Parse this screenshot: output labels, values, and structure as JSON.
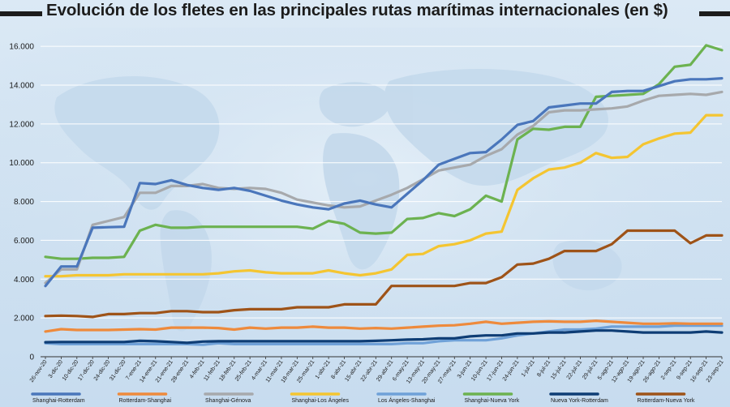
{
  "title": "Evolución de los fletes en las principales rutas marítimas internacionales (en $)",
  "chart_data": {
    "type": "line",
    "title": "Evolución de los fletes en las principales rutas marítimas internacionales (en $)",
    "xlabel": "",
    "ylabel": "",
    "ylim": [
      0,
      16800
    ],
    "y_ticks": [
      "0",
      "2.000",
      "4.000",
      "6.000",
      "8.000",
      "10.000",
      "12.000",
      "14.000",
      "16.000"
    ],
    "y_tick_values": [
      0,
      2000,
      4000,
      6000,
      8000,
      10000,
      12000,
      14000,
      16000
    ],
    "grid": true,
    "legend_position": "bottom",
    "x": [
      "26-nov-20",
      "3-dic-20",
      "10-dic-20",
      "17-dic-20",
      "24-dic-20",
      "31-dic-20",
      "7-ene-21",
      "14-ene-21",
      "21-ene-21",
      "28-ene-21",
      "4-feb-21",
      "11-feb-21",
      "18-feb-21",
      "25-feb-21",
      "4-mar-21",
      "11-mar-21",
      "18-mar-21",
      "25-mar-21",
      "1-abr-21",
      "8-abr-21",
      "15-abr-21",
      "22-abr-21",
      "29-abr-21",
      "6-may-21",
      "13-may-21",
      "20-may-21",
      "27-may-21",
      "3-jun-21",
      "10-jun-21",
      "17-jun-21",
      "24-jun-21",
      "1-jul-21",
      "8-jul-21",
      "15-jul-21",
      "22-jul-21",
      "29-jul-21",
      "5-ago-21",
      "12-ago-21",
      "19-ago-21",
      "26-ago-21",
      "2-sep-21",
      "9-sep-21",
      "16-sep-21",
      "23-sep-21"
    ],
    "series": [
      {
        "name": "Shanghai-Rotterdam",
        "color": "#4a76bb",
        "values": [
          3650,
          4650,
          4650,
          6650,
          6680,
          6700,
          8950,
          8900,
          9100,
          8850,
          8700,
          8600,
          8700,
          8550,
          8300,
          8050,
          7850,
          7700,
          7600,
          7900,
          8050,
          7850,
          7700,
          8400,
          9100,
          9900,
          10200,
          10500,
          10550,
          11200,
          11950,
          12150,
          12850,
          12950,
          13050,
          13050,
          13650,
          13700,
          13700,
          13950,
          14200,
          14300,
          14300,
          14350
        ]
      },
      {
        "name": "Rotterdam-Shanghai",
        "color": "#ee8a3c",
        "values": [
          1300,
          1420,
          1380,
          1380,
          1380,
          1400,
          1420,
          1400,
          1500,
          1500,
          1500,
          1480,
          1400,
          1500,
          1450,
          1500,
          1500,
          1550,
          1500,
          1500,
          1450,
          1480,
          1450,
          1500,
          1550,
          1600,
          1620,
          1700,
          1800,
          1700,
          1750,
          1800,
          1820,
          1800,
          1800,
          1850,
          1800,
          1750,
          1700,
          1700,
          1720,
          1700,
          1700,
          1700
        ]
      },
      {
        "name": "Shanghai-Génova",
        "color": "#a7a9ac",
        "values": [
          3800,
          4500,
          4500,
          6800,
          7000,
          7200,
          8450,
          8450,
          8800,
          8800,
          8900,
          8700,
          8650,
          8700,
          8650,
          8450,
          8100,
          7950,
          7800,
          7700,
          7750,
          8050,
          8350,
          8700,
          9150,
          9600,
          9750,
          9900,
          10350,
          10700,
          11450,
          11900,
          12600,
          12700,
          12700,
          12750,
          12800,
          12900,
          13200,
          13450,
          13500,
          13550,
          13500,
          13650
        ]
      },
      {
        "name": "Shanghai-Los Ángeles",
        "color": "#f4c531",
        "values": [
          4150,
          4150,
          4200,
          4200,
          4200,
          4250,
          4250,
          4250,
          4250,
          4250,
          4250,
          4300,
          4400,
          4450,
          4350,
          4300,
          4300,
          4300,
          4450,
          4300,
          4200,
          4300,
          4500,
          5250,
          5300,
          5700,
          5800,
          6000,
          6350,
          6450,
          8600,
          9200,
          9650,
          9750,
          10000,
          10500,
          10250,
          10300,
          10950,
          11250,
          11500,
          11550,
          12450,
          12450
        ]
      },
      {
        "name": "Los Ángeles-Shanghai",
        "color": "#6fa1d8",
        "values": [
          700,
          650,
          650,
          650,
          650,
          650,
          650,
          650,
          650,
          650,
          620,
          700,
          650,
          650,
          650,
          650,
          650,
          650,
          650,
          650,
          650,
          650,
          650,
          700,
          700,
          800,
          850,
          850,
          850,
          950,
          1100,
          1200,
          1300,
          1400,
          1400,
          1450,
          1550,
          1550,
          1550,
          1550,
          1600,
          1600,
          1600,
          1600
        ]
      },
      {
        "name": "Shanghai-Nueva York",
        "color": "#6cb250",
        "values": [
          5150,
          5050,
          5050,
          5100,
          5100,
          5150,
          6500,
          6800,
          6650,
          6650,
          6700,
          6700,
          6700,
          6700,
          6700,
          6700,
          6700,
          6600,
          7000,
          6850,
          6400,
          6350,
          6400,
          7100,
          7150,
          7400,
          7250,
          7600,
          8300,
          8000,
          11200,
          11750,
          11700,
          11850,
          11850,
          13400,
          13450,
          13500,
          13550,
          14050,
          14950,
          15050,
          16050,
          15800
        ]
      },
      {
        "name": "Nueva York-Rotterdam",
        "color": "#0e3d75",
        "values": [
          750,
          760,
          760,
          760,
          760,
          760,
          820,
          800,
          760,
          720,
          780,
          800,
          800,
          800,
          800,
          800,
          800,
          800,
          800,
          800,
          800,
          820,
          850,
          880,
          900,
          950,
          950,
          1050,
          1100,
          1100,
          1200,
          1200,
          1250,
          1250,
          1300,
          1350,
          1350,
          1300,
          1250,
          1250,
          1250,
          1250,
          1300,
          1250
        ]
      },
      {
        "name": "Rotterdam-Nueva York",
        "color": "#9e5318",
        "values": [
          2100,
          2120,
          2100,
          2050,
          2200,
          2200,
          2250,
          2250,
          2350,
          2350,
          2300,
          2300,
          2400,
          2450,
          2450,
          2450,
          2550,
          2550,
          2550,
          2700,
          2700,
          2700,
          3650,
          3650,
          3650,
          3650,
          3650,
          3800,
          3800,
          4100,
          4750,
          4800,
          5050,
          5450,
          5450,
          5450,
          5800,
          6500,
          6500,
          6500,
          6500,
          5850,
          6250,
          6250
        ]
      }
    ]
  }
}
